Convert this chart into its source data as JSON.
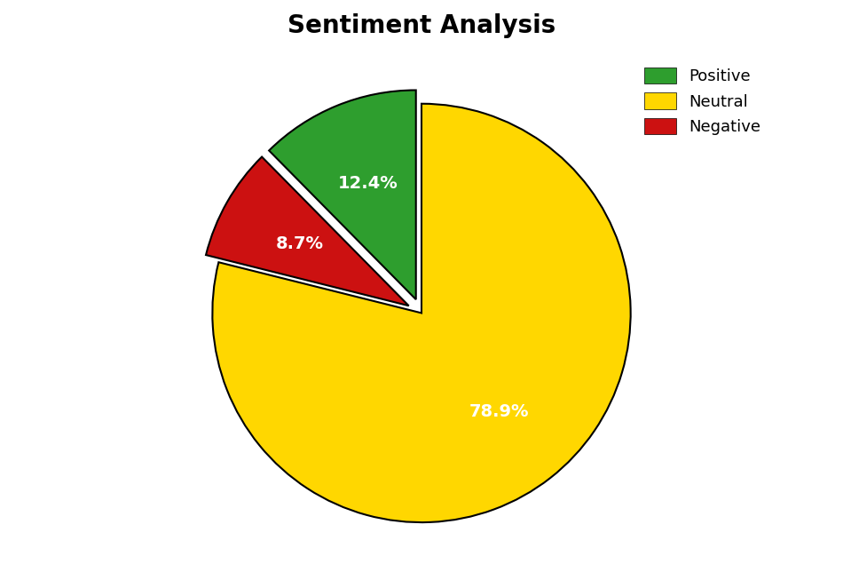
{
  "title": "Sentiment Analysis",
  "title_fontsize": 20,
  "title_fontweight": "bold",
  "slices": [
    {
      "label": "Neutral",
      "value": 78.9,
      "color": "#FFD700",
      "explode": 0.0,
      "text_color": "white"
    },
    {
      "label": "Negative",
      "value": 8.7,
      "color": "#cc1111",
      "explode": 0.07,
      "text_color": "white"
    },
    {
      "label": "Positive",
      "value": 12.4,
      "color": "#2e9e2e",
      "explode": 0.07,
      "text_color": "white"
    }
  ],
  "legend_order": [
    "Positive",
    "Neutral",
    "Negative"
  ],
  "legend_colors": [
    "#2e9e2e",
    "#FFD700",
    "#cc1111"
  ],
  "legend_fontsize": 13,
  "label_fontsize": 14,
  "background_color": "#ffffff",
  "edge_color": "black",
  "edge_width": 1.5,
  "startangle": 90,
  "pctdistance": 0.6
}
